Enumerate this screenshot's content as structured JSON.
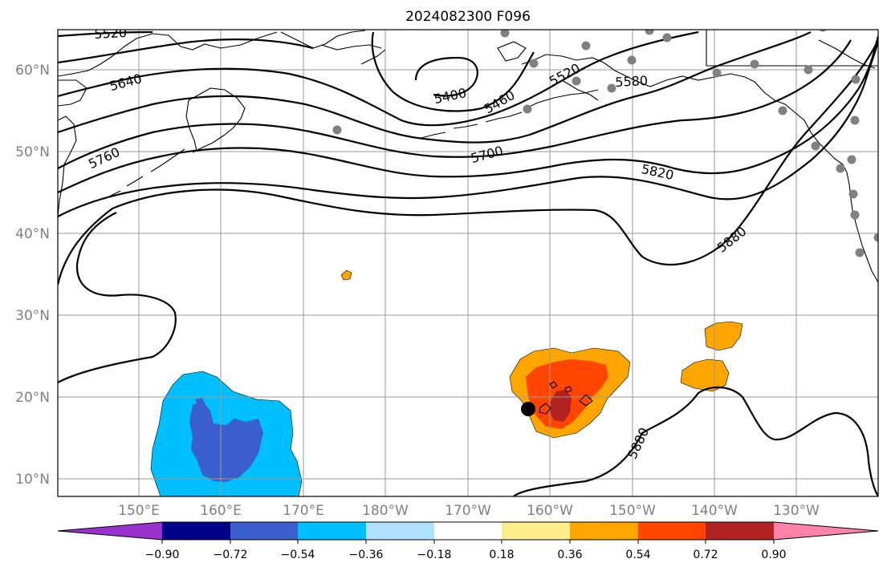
{
  "title": "2024082300 F096",
  "lat_ticks": [
    "60°N",
    "50°N",
    "40°N",
    "30°N",
    "20°N",
    "10°N"
  ],
  "lon_ticks": [
    "150°E",
    "160°E",
    "170°E",
    "180°W",
    "170°W",
    "160°W",
    "150°W",
    "140°W",
    "130°W"
  ],
  "contour_labels": [
    "5520",
    "5640",
    "5760",
    "5400",
    "5460",
    "5520",
    "5580",
    "5700",
    "5820",
    "5880",
    "5880"
  ],
  "colorbar": {
    "tick_labels": [
      "−0.90",
      "−0.72",
      "−0.54",
      "−0.36",
      "−0.18",
      "0.18",
      "0.36",
      "0.54",
      "0.72",
      "0.90"
    ],
    "colors": [
      "#9932CC",
      "#00008B",
      "#3A5FCD",
      "#00BFFF",
      "#B0E2FF",
      "#FFFFFF",
      "#FFEC8B",
      "#FFA500",
      "#FF4500",
      "#B22222",
      "#FF82AB"
    ]
  },
  "colors": {
    "contour": "#000000",
    "gridline": "#9a9a9a",
    "tick_label": "#808080",
    "station_marker": "#808080",
    "storm_marker": "#000000"
  }
}
